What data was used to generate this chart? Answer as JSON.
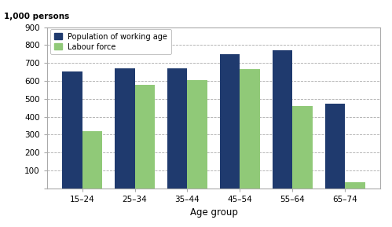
{
  "categories": [
    "15–24",
    "25–34",
    "35–44",
    "45–54",
    "55–64",
    "65–74"
  ],
  "population": [
    655,
    670,
    670,
    750,
    770,
    475
  ],
  "labour_force": [
    320,
    580,
    605,
    665,
    460,
    35
  ],
  "bar_color_pop": "#1f3a6e",
  "bar_color_lab": "#90c978",
  "ylabel": "1,000 persons",
  "xlabel": "Age group",
  "ylim": [
    0,
    900
  ],
  "yticks": [
    0,
    100,
    200,
    300,
    400,
    500,
    600,
    700,
    800,
    900
  ],
  "legend_pop": "Population of working age",
  "legend_lab": "Labour force",
  "background_color": "#ffffff",
  "grid_color": "#aaaaaa",
  "border_color": "#aaaaaa"
}
